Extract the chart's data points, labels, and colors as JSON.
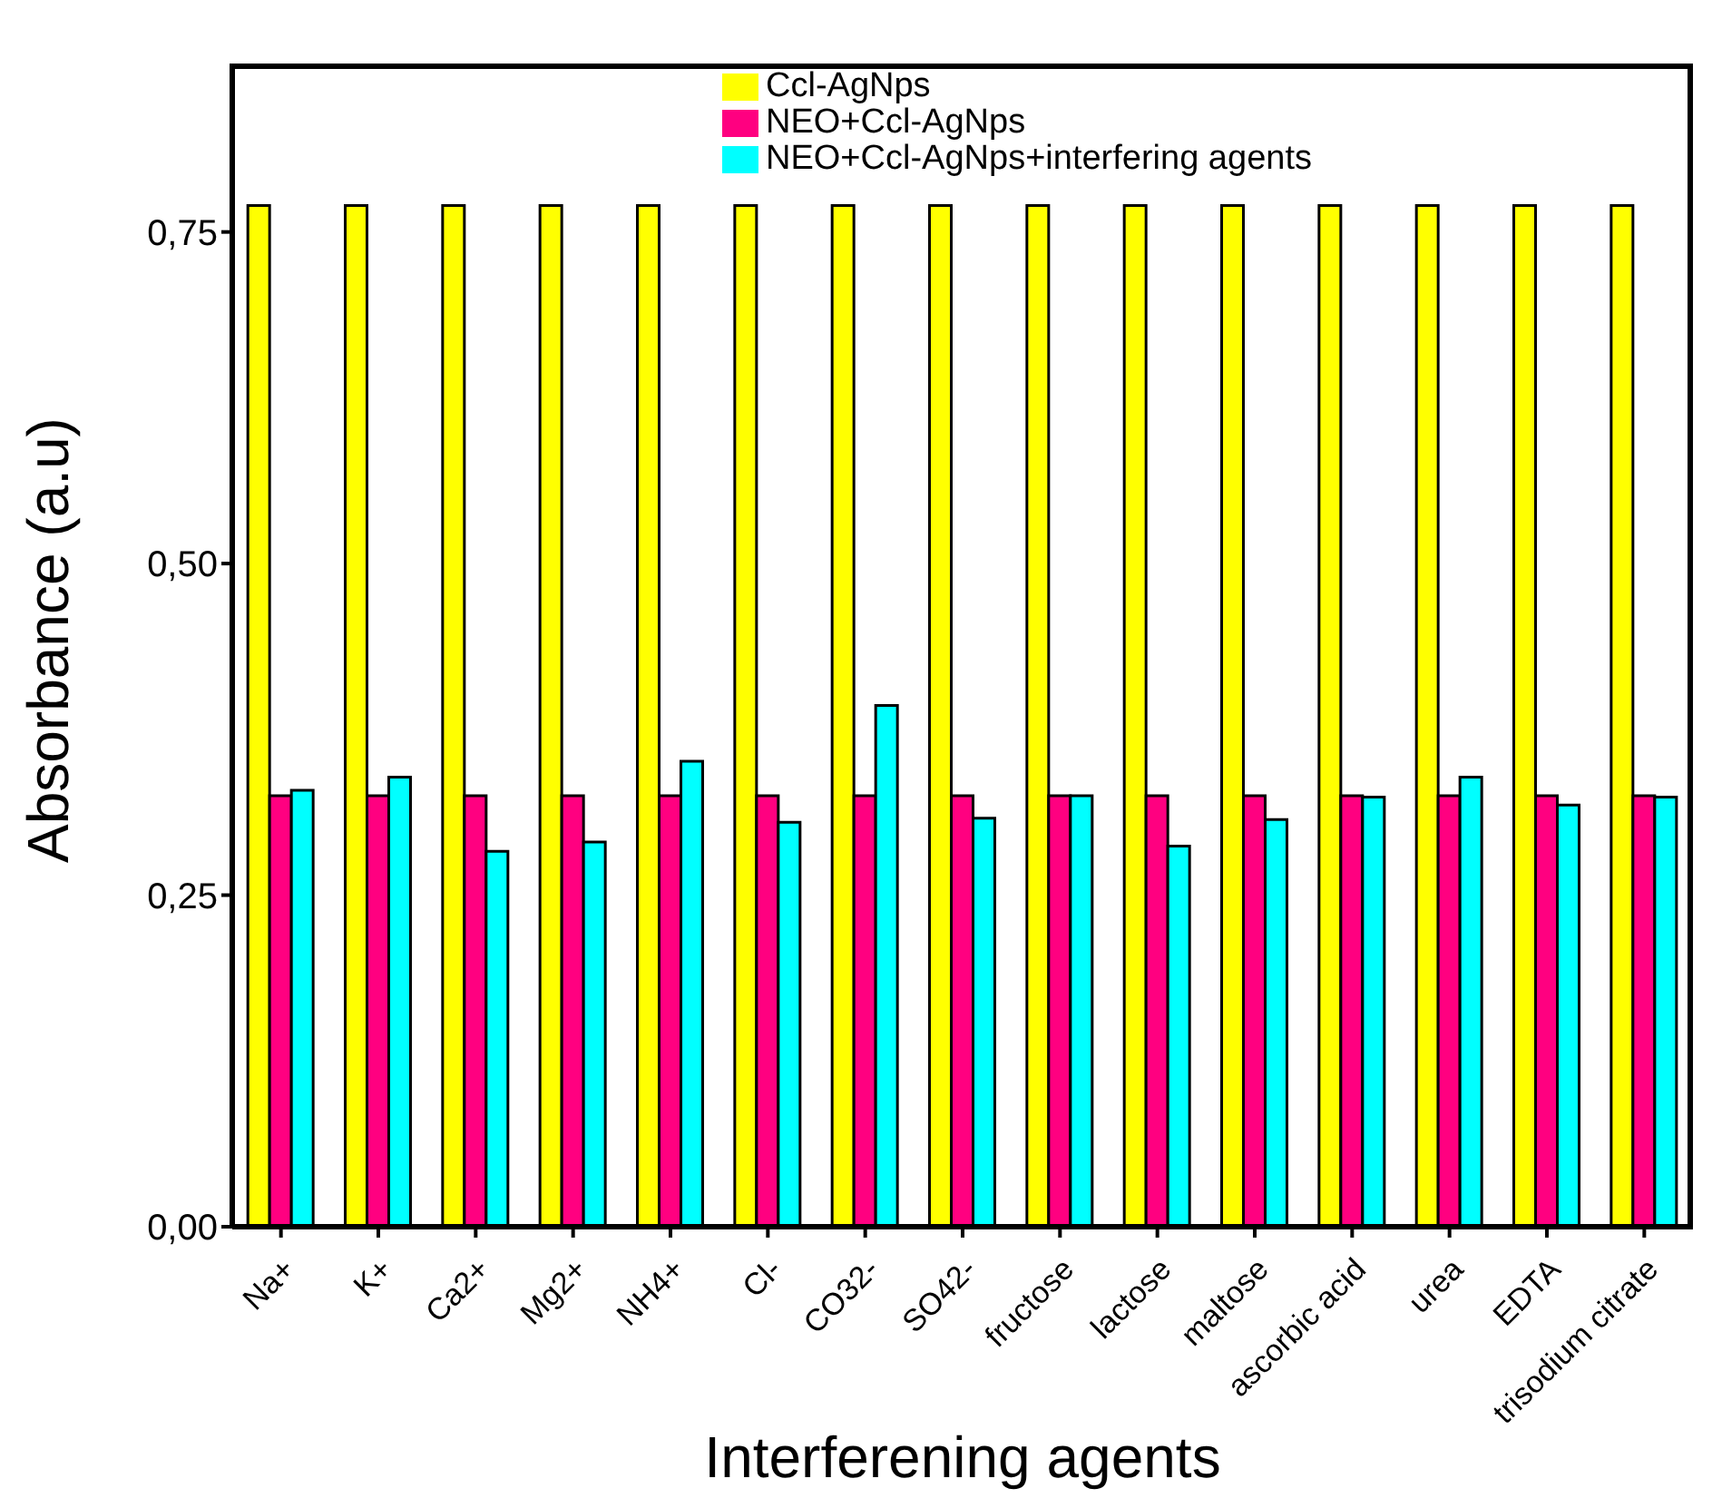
{
  "chart_data": {
    "type": "bar",
    "xlabel": "Interferening agents",
    "ylabel": "Absorbance (a.u)",
    "categories": [
      "Na+",
      "K+",
      "Ca2+",
      "Mg2+",
      "NH4+",
      "Cl-",
      "CO32-",
      "SO42-",
      "fructose",
      "lactose",
      "maltose",
      "ascorbic acid",
      "urea",
      "EDTA",
      "trisodium citrate"
    ],
    "series": [
      {
        "name": "Ccl-AgNps",
        "color": "#ffff00",
        "values": [
          0.77,
          0.77,
          0.77,
          0.77,
          0.77,
          0.77,
          0.77,
          0.77,
          0.77,
          0.77,
          0.77,
          0.77,
          0.77,
          0.77,
          0.77
        ]
      },
      {
        "name": "NEO+Ccl-AgNps",
        "color": "#ff0080",
        "values": [
          0.325,
          0.325,
          0.325,
          0.325,
          0.325,
          0.325,
          0.325,
          0.325,
          0.325,
          0.325,
          0.325,
          0.325,
          0.325,
          0.325,
          0.325
        ]
      },
      {
        "name": "NEO+Ccl-AgNps+interfering agents",
        "color": "#00ffff",
        "values": [
          0.329,
          0.339,
          0.283,
          0.29,
          0.351,
          0.305,
          0.393,
          0.308,
          0.325,
          0.287,
          0.307,
          0.324,
          0.339,
          0.318,
          0.324
        ]
      }
    ],
    "ylim": [
      0,
      0.877
    ],
    "yticks": [
      {
        "value": 0,
        "label": "0,00"
      },
      {
        "value": 0.25,
        "label": "0,25"
      },
      {
        "value": 0.5,
        "label": "0,50"
      },
      {
        "value": 0.75,
        "label": "0,75"
      }
    ],
    "grid": false,
    "legend": "top"
  }
}
